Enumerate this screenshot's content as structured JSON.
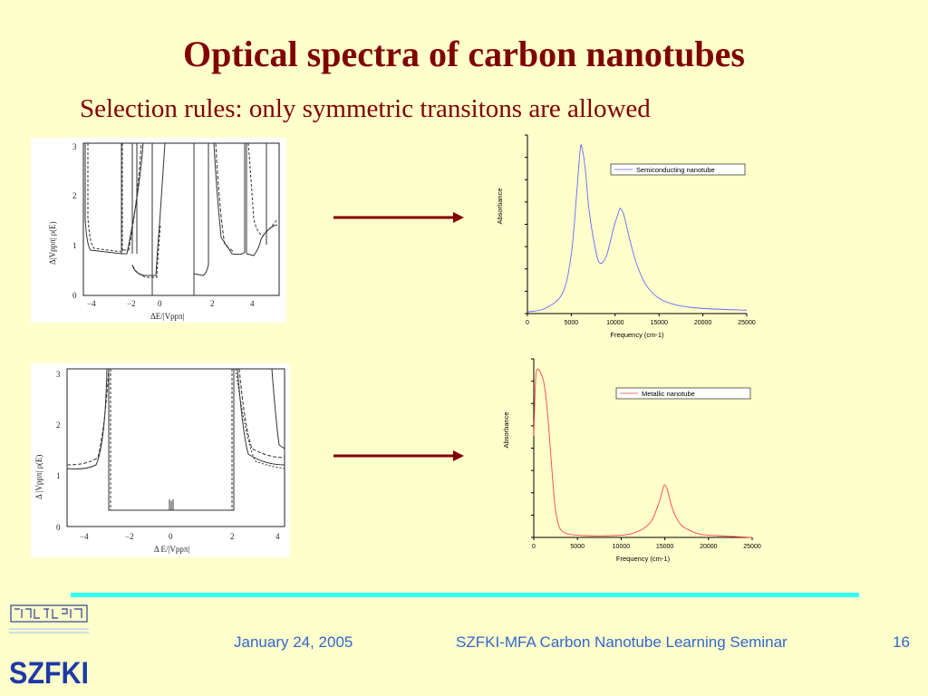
{
  "slide": {
    "title": "Optical spectra of carbon nanotubes",
    "subtitle": "Selection rules: only symmetric transitons are allowed",
    "accent_color": "#800000",
    "background_color": "#ffffcc"
  },
  "dos_panels": [
    {
      "y_ticks": [
        "0",
        "1",
        "2",
        "3"
      ],
      "x_ticks": [
        "−4",
        "−2",
        "0",
        "2",
        "4"
      ],
      "ylabel": "Δ|Vppπ| ρ(E)",
      "xlabel": "ΔE/|Vppπ|"
    },
    {
      "y_ticks": [
        "0",
        "1",
        "2",
        "3"
      ],
      "x_ticks": [
        "−4",
        "−2",
        "0",
        "2",
        "4"
      ],
      "ylabel": "Δ |Vppπ| ρ(E)",
      "xlabel": "Δ E/|Vppπ|"
    }
  ],
  "chart_data": [
    {
      "type": "line",
      "title": "",
      "xlabel": "Frequency (cm-1)",
      "ylabel": "Absorbance",
      "xlim": [
        0,
        25000
      ],
      "x_ticks": [
        0,
        5000,
        10000,
        15000,
        20000,
        25000
      ],
      "legend": "top-right",
      "series": [
        {
          "name": "Semiconducting nanotube",
          "color": "#6666ff",
          "x": [
            0,
            2000,
            4000,
            5000,
            5600,
            6000,
            6200,
            6600,
            7000,
            7600,
            8200,
            9000,
            9800,
            10400,
            10600,
            11000,
            11600,
            12400,
            13500,
            15000,
            17000,
            20000,
            25000
          ],
          "y": [
            0.01,
            0.03,
            0.12,
            0.35,
            0.7,
            0.96,
            0.98,
            0.85,
            0.62,
            0.42,
            0.3,
            0.34,
            0.5,
            0.6,
            0.62,
            0.58,
            0.45,
            0.3,
            0.17,
            0.09,
            0.05,
            0.03,
            0.02
          ]
        }
      ]
    },
    {
      "type": "line",
      "title": "",
      "xlabel": "Frequency (cm-1)",
      "ylabel": "Absorbance",
      "xlim": [
        0,
        25000
      ],
      "x_ticks": [
        0,
        5000,
        10000,
        15000,
        20000,
        25000
      ],
      "legend": "top-right",
      "series": [
        {
          "name": "Metallic nanotube",
          "color": "#ff4444",
          "x": [
            0,
            200,
            400,
            800,
            1200,
            1600,
            2000,
            2400,
            2800,
            3200,
            4000,
            6000,
            9000,
            11000,
            12500,
            13500,
            14300,
            14800,
            15000,
            15300,
            15800,
            16600,
            17500,
            19000,
            21000,
            25000
          ],
          "y": [
            0.6,
            0.92,
            0.99,
            0.97,
            0.9,
            0.72,
            0.45,
            0.2,
            0.08,
            0.04,
            0.02,
            0.01,
            0.01,
            0.02,
            0.05,
            0.1,
            0.2,
            0.29,
            0.31,
            0.28,
            0.18,
            0.09,
            0.05,
            0.02,
            0.01,
            0.0
          ]
        }
      ]
    }
  ],
  "footer": {
    "date": "January 24, 2005",
    "seminar": "SZFKI-MFA Carbon Nanotube Learning Seminar",
    "page_number": "16",
    "line_color": "#33ffff",
    "text_color": "#3366cc"
  },
  "logo": {
    "text": "SZFKI",
    "icon": "szfki-logo-icon"
  }
}
